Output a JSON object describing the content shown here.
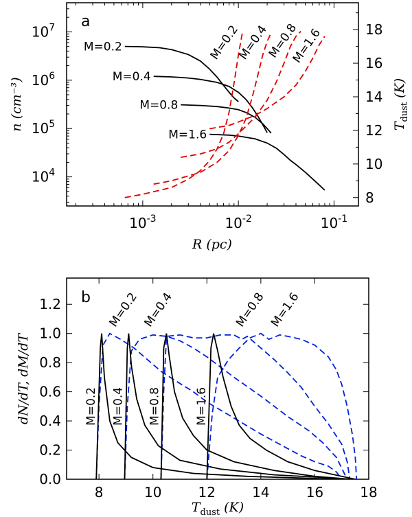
{
  "chart_data": [
    {
      "type": "line",
      "panel_label": "a",
      "xlabel": "R (pc)",
      "ylabel": "n (cm^-3)",
      "ylabel_right": "T_dust (K)",
      "xscale": "log",
      "yscale": "log",
      "xlim": [
        0.00016,
        0.18
      ],
      "ylim": [
        2500,
        40000000
      ],
      "ylim_right": [
        7.5,
        19.6
      ],
      "x_ticks": [
        0.001,
        0.01,
        0.1
      ],
      "x_tick_labels": [
        "10^-3",
        "10^-2",
        "10^-1"
      ],
      "y_ticks": [
        10000,
        100000,
        1000000,
        10000000
      ],
      "y_tick_labels": [
        "10^4",
        "10^5",
        "10^6",
        "10^7"
      ],
      "y_right_ticks": [
        8,
        10,
        12,
        14,
        16,
        18
      ],
      "y_right_tick_labels": [
        "8",
        "10",
        "12",
        "14",
        "16",
        "18"
      ],
      "density_series": [
        {
          "name": "M=0.2",
          "label": "M=0.2",
          "color": "#000000",
          "style": "solid",
          "x": [
            0.00065,
            0.001,
            0.0015,
            0.002,
            0.003,
            0.004,
            0.005,
            0.006,
            0.007,
            0.008,
            0.009,
            0.01
          ],
          "y": [
            5000000,
            4900000,
            4700000,
            4300000,
            3400000,
            2500000,
            1700000,
            1150000,
            780000,
            560000,
            430000,
            360000
          ]
        },
        {
          "name": "M=0.4",
          "label": "M=0.4",
          "color": "#000000",
          "style": "solid",
          "x": [
            0.0013,
            0.002,
            0.003,
            0.004,
            0.006,
            0.008,
            0.01,
            0.012,
            0.014,
            0.016,
            0.018,
            0.02
          ],
          "y": [
            1200000,
            1170000,
            1110000,
            1040000,
            900000,
            740000,
            560000,
            400000,
            270000,
            180000,
            120000,
            82000
          ]
        },
        {
          "name": "M=0.8",
          "label": "M=0.8",
          "color": "#000000",
          "style": "solid",
          "x": [
            0.0025,
            0.004,
            0.006,
            0.008,
            0.01,
            0.012,
            0.015,
            0.018,
            0.02,
            0.022
          ],
          "y": [
            310000,
            300000,
            285000,
            265000,
            245000,
            215000,
            170000,
            125000,
            100000,
            80000
          ]
        },
        {
          "name": "M=1.6",
          "label": "M=1.6",
          "color": "#000000",
          "style": "solid",
          "x": [
            0.005,
            0.008,
            0.01,
            0.015,
            0.02,
            0.025,
            0.03,
            0.035,
            0.04,
            0.05,
            0.06,
            0.07,
            0.08
          ],
          "y": [
            76000,
            73000,
            70000,
            61000,
            50000,
            39000,
            29000,
            22000,
            18000,
            12500,
            9000,
            6800,
            5300
          ]
        }
      ],
      "temperature_series": [
        {
          "name": "M=0.2",
          "label": "M=0.2",
          "color": "#dd0000",
          "style": "dashed",
          "x": [
            0.00065,
            0.001,
            0.002,
            0.003,
            0.004,
            0.005,
            0.006,
            0.007,
            0.008,
            0.009,
            0.01,
            0.011
          ],
          "y": [
            8.0,
            8.2,
            8.6,
            9.1,
            9.6,
            10.2,
            10.9,
            11.8,
            13.1,
            14.8,
            16.5,
            17.8
          ]
        },
        {
          "name": "M=0.4",
          "label": "M=0.4",
          "color": "#dd0000",
          "style": "dashed",
          "x": [
            0.0013,
            0.002,
            0.004,
            0.006,
            0.008,
            0.01,
            0.012,
            0.014,
            0.016,
            0.018,
            0.02,
            0.022
          ],
          "y": [
            8.8,
            9.0,
            9.5,
            10.1,
            10.8,
            11.7,
            12.7,
            14.0,
            15.3,
            16.5,
            17.3,
            17.8
          ]
        },
        {
          "name": "M=0.8",
          "label": "M=0.8",
          "color": "#dd0000",
          "style": "dashed",
          "x": [
            0.0025,
            0.004,
            0.006,
            0.008,
            0.01,
            0.015,
            0.02,
            0.025,
            0.03,
            0.035,
            0.04,
            0.045
          ],
          "y": [
            10.4,
            10.6,
            10.9,
            11.3,
            11.8,
            12.8,
            13.8,
            14.9,
            16.0,
            17.0,
            17.6,
            17.9
          ]
        },
        {
          "name": "M=1.6",
          "label": "M=1.6",
          "color": "#dd0000",
          "style": "dashed",
          "x": [
            0.005,
            0.008,
            0.01,
            0.015,
            0.02,
            0.03,
            0.04,
            0.05,
            0.06,
            0.07,
            0.08
          ],
          "y": [
            12.1,
            12.3,
            12.5,
            12.9,
            13.3,
            14.0,
            14.7,
            15.5,
            16.3,
            17.1,
            17.6
          ]
        }
      ]
    },
    {
      "type": "line",
      "panel_label": "b",
      "xlabel": "T_dust (K)",
      "ylabel": "dN/dT, dM/dT",
      "xlim": [
        6.8,
        18
      ],
      "ylim": [
        0,
        1.38
      ],
      "x_ticks": [
        8,
        10,
        12,
        14,
        16,
        18
      ],
      "x_tick_labels": [
        "8",
        "10",
        "12",
        "14",
        "16",
        "18"
      ],
      "y_ticks": [
        0,
        0.2,
        0.4,
        0.6,
        0.8,
        1.0,
        1.2
      ],
      "y_tick_labels": [
        "0.0",
        "0.2",
        "0.4",
        "0.6",
        "0.8",
        "1.0",
        "1.2"
      ],
      "number_series": [
        {
          "name": "M=0.2",
          "label": "M=0.2",
          "color": "#000000",
          "style": "solid",
          "x": [
            7.9,
            8.05,
            8.1,
            8.2,
            8.4,
            8.7,
            9.2,
            10.0,
            11.5,
            13.5,
            16.0,
            17.0
          ],
          "y": [
            0.0,
            0.9,
            1.0,
            0.7,
            0.4,
            0.25,
            0.15,
            0.08,
            0.04,
            0.02,
            0.005,
            0.0
          ]
        },
        {
          "name": "M=0.4",
          "label": "M=0.4",
          "color": "#000000",
          "style": "solid",
          "x": [
            8.95,
            9.05,
            9.1,
            9.2,
            9.4,
            9.7,
            10.2,
            11.0,
            12.5,
            14.5,
            16.5,
            17.2
          ],
          "y": [
            0.0,
            0.9,
            1.0,
            0.78,
            0.55,
            0.37,
            0.23,
            0.13,
            0.07,
            0.03,
            0.01,
            0.0
          ]
        },
        {
          "name": "M=0.8",
          "label": "M=0.8",
          "color": "#000000",
          "style": "solid",
          "x": [
            10.3,
            10.4,
            10.5,
            10.6,
            10.8,
            11.1,
            11.5,
            12.0,
            13.0,
            14.5,
            16.0,
            17.3
          ],
          "y": [
            0.0,
            0.9,
            1.0,
            0.85,
            0.6,
            0.42,
            0.3,
            0.2,
            0.12,
            0.06,
            0.02,
            0.0
          ]
        },
        {
          "name": "M=1.6",
          "label": "M=1.6",
          "color": "#000000",
          "style": "solid",
          "x": [
            12.0,
            12.15,
            12.25,
            12.4,
            12.6,
            12.9,
            13.2,
            13.6,
            14.2,
            15.0,
            16.0,
            17.0,
            17.5
          ],
          "y": [
            0.0,
            0.9,
            1.0,
            0.88,
            0.7,
            0.5,
            0.37,
            0.28,
            0.2,
            0.12,
            0.06,
            0.02,
            0.0
          ]
        }
      ],
      "mass_series": [
        {
          "name": "M=0.2",
          "label": "M=0.2",
          "color": "#0022dd",
          "style": "dashed",
          "x": [
            7.9,
            8.0,
            8.15,
            8.4,
            8.8,
            9.3,
            9.8,
            10.3,
            10.8,
            11.5,
            12.0,
            13.0,
            14.0,
            15.0,
            15.5,
            16.0,
            16.5,
            16.8,
            17.0
          ],
          "y": [
            0.0,
            0.5,
            0.92,
            1.0,
            0.96,
            0.9,
            0.82,
            0.74,
            0.68,
            0.6,
            0.53,
            0.42,
            0.31,
            0.21,
            0.16,
            0.12,
            0.09,
            0.05,
            0.0
          ]
        },
        {
          "name": "M=0.4",
          "label": "M=0.4",
          "color": "#0022dd",
          "style": "dashed",
          "x": [
            8.95,
            9.05,
            9.2,
            9.5,
            10.0,
            10.5,
            11.0,
            11.5,
            12.0,
            12.5,
            13.0,
            14.0,
            15.0,
            15.8,
            16.3,
            16.8,
            17.2
          ],
          "y": [
            0.0,
            0.5,
            0.88,
            0.96,
            0.99,
            0.98,
            0.95,
            0.9,
            0.84,
            0.77,
            0.7,
            0.57,
            0.43,
            0.33,
            0.25,
            0.15,
            0.0
          ]
        },
        {
          "name": "M=0.8",
          "label": "M=0.8",
          "color": "#0022dd",
          "style": "dashed",
          "x": [
            10.3,
            10.4,
            10.5,
            11.0,
            11.5,
            12.0,
            12.5,
            13.0,
            13.3,
            13.5,
            14.0,
            14.5,
            15.0,
            15.5,
            16.0,
            16.5,
            17.0,
            17.2,
            17.3
          ],
          "y": [
            0.0,
            0.6,
            0.98,
            0.99,
            0.97,
            0.97,
            0.99,
            0.99,
            0.96,
            0.98,
            0.9,
            0.82,
            0.73,
            0.63,
            0.5,
            0.38,
            0.24,
            0.12,
            0.0
          ]
        },
        {
          "name": "M=1.6",
          "label": "M=1.6",
          "color": "#0022dd",
          "style": "dashed",
          "x": [
            12.0,
            12.2,
            12.4,
            12.8,
            13.2,
            13.6,
            14.0,
            14.3,
            14.7,
            15.0,
            15.5,
            16.0,
            16.5,
            16.8,
            17.0,
            17.2,
            17.4,
            17.5,
            17.55
          ],
          "y": [
            0.0,
            0.45,
            0.7,
            0.82,
            0.9,
            0.97,
            1.0,
            0.96,
            0.99,
            0.98,
            0.96,
            0.92,
            0.84,
            0.75,
            0.65,
            0.5,
            0.3,
            0.15,
            0.0
          ]
        }
      ]
    }
  ]
}
